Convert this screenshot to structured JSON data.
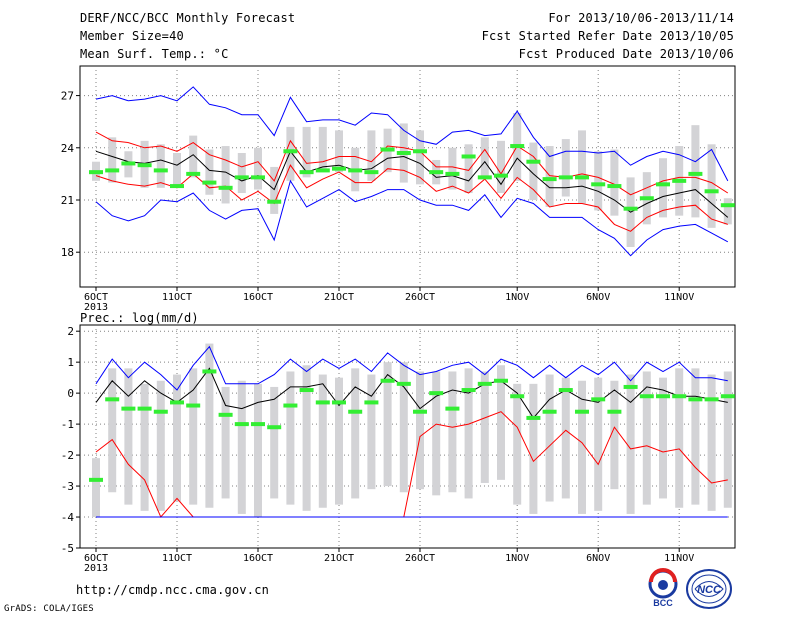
{
  "header": {
    "title": "DERF/NCC/BCC Monthly Forecast",
    "member": "Member Size=40",
    "variable": "Mean Surf. Temp.: °C",
    "period": "For 2013/10/06-2013/11/14",
    "started": "Fcst Started Refer Date 2013/10/05",
    "produced": "Fcst Produced Date 2013/10/06"
  },
  "precip_label": "Prec.: log(mm/d)",
  "footer": {
    "url": "http://cmdp.ncc.cma.gov.cn",
    "credit": "GrADS: COLA/IGES"
  },
  "logos": {
    "bcc": "BCC",
    "ncc": "NCC"
  },
  "colors": {
    "ensemble_mean": "#000000",
    "spread": "#ff0000",
    "extremes": "#0000ff",
    "box": "#d3d3d6",
    "marker": "#33ee33"
  },
  "chart_data": [
    {
      "type": "line",
      "panel": "temperature",
      "x": [
        "2013-10-06",
        "2013-10-07",
        "2013-10-08",
        "2013-10-09",
        "2013-10-10",
        "2013-10-11",
        "2013-10-12",
        "2013-10-13",
        "2013-10-14",
        "2013-10-15",
        "2013-10-16",
        "2013-10-17",
        "2013-10-18",
        "2013-10-19",
        "2013-10-20",
        "2013-10-21",
        "2013-10-22",
        "2013-10-23",
        "2013-10-24",
        "2013-10-25",
        "2013-10-26",
        "2013-10-27",
        "2013-10-28",
        "2013-10-29",
        "2013-10-30",
        "2013-10-31",
        "2013-11-01",
        "2013-11-02",
        "2013-11-03",
        "2013-11-04",
        "2013-11-05",
        "2013-11-06",
        "2013-11-07",
        "2013-11-08",
        "2013-11-09",
        "2013-11-10",
        "2013-11-11",
        "2013-11-12",
        "2013-11-13",
        "2013-11-14"
      ],
      "x_tick_labels": [
        "6OCT\n2013",
        "11OCT",
        "16OCT",
        "21OCT",
        "26OCT",
        "1NOV",
        "6NOV",
        "11NOV"
      ],
      "ylim": [
        16,
        28.7
      ],
      "y_ticks": [
        18,
        21,
        24,
        27
      ],
      "grid": true,
      "series": [
        {
          "role": "max",
          "color": "#0000ff",
          "values": [
            26.8,
            27.0,
            26.7,
            26.8,
            27.0,
            26.7,
            27.5,
            26.5,
            26.3,
            25.9,
            25.9,
            24.7,
            26.9,
            25.5,
            25.6,
            25.6,
            25.3,
            26.0,
            25.9,
            25.0,
            24.4,
            24.2,
            24.9,
            25.0,
            24.7,
            24.8,
            26.1,
            24.6,
            23.5,
            23.8,
            23.8,
            23.7,
            23.8,
            23.0,
            23.5,
            23.8,
            23.6,
            23.2,
            23.9,
            22.1
          ]
        },
        {
          "role": "upper",
          "color": "#ff0000",
          "values": [
            24.9,
            24.4,
            24.3,
            24.0,
            24.1,
            23.8,
            24.3,
            23.6,
            23.3,
            22.9,
            23.2,
            22.1,
            24.4,
            23.1,
            23.2,
            23.5,
            23.5,
            23.2,
            24.1,
            24.0,
            23.8,
            22.9,
            22.9,
            22.7,
            23.9,
            22.5,
            24.1,
            23.5,
            22.4,
            22.3,
            22.5,
            22.3,
            21.9,
            21.3,
            21.7,
            22.1,
            22.3,
            22.3,
            22.0,
            21.4
          ]
        },
        {
          "role": "mean",
          "color": "#000000",
          "values": [
            23.8,
            23.5,
            23.2,
            23.1,
            23.3,
            23.0,
            23.6,
            22.7,
            22.6,
            22.1,
            22.4,
            21.6,
            23.8,
            22.6,
            22.9,
            23.0,
            22.7,
            22.8,
            23.4,
            23.5,
            23.1,
            22.3,
            22.4,
            22.1,
            23.2,
            21.9,
            23.4,
            22.5,
            21.7,
            21.7,
            21.8,
            21.5,
            21.0,
            20.3,
            20.8,
            21.2,
            21.4,
            21.6,
            20.8,
            20.0
          ]
        },
        {
          "role": "lower",
          "color": "#ff0000",
          "values": [
            22.4,
            22.1,
            21.9,
            21.8,
            22.0,
            21.7,
            22.5,
            21.7,
            21.8,
            21.0,
            21.5,
            20.8,
            23.0,
            21.7,
            22.2,
            22.6,
            22.0,
            22.0,
            22.8,
            22.7,
            22.3,
            21.5,
            21.8,
            21.4,
            22.2,
            21.1,
            22.3,
            21.6,
            20.6,
            20.8,
            20.8,
            20.6,
            19.6,
            19.2,
            20.0,
            20.4,
            20.6,
            20.7,
            19.9,
            19.6
          ]
        },
        {
          "role": "min",
          "color": "#0000ff",
          "values": [
            20.9,
            20.1,
            19.8,
            20.1,
            21.0,
            20.9,
            21.4,
            20.4,
            19.9,
            20.4,
            20.5,
            18.7,
            22.1,
            20.6,
            21.1,
            21.6,
            20.9,
            21.2,
            21.6,
            21.6,
            21.0,
            20.7,
            20.7,
            20.4,
            21.3,
            20.0,
            21.1,
            20.8,
            20.0,
            20.0,
            20.0,
            19.3,
            18.8,
            17.8,
            18.7,
            19.3,
            19.5,
            19.6,
            19.1,
            18.6
          ]
        }
      ],
      "boxes": {
        "low": [
          22.1,
          22.0,
          22.3,
          21.7,
          21.7,
          21.7,
          22.3,
          21.3,
          20.8,
          21.4,
          21.6,
          20.2,
          22.1,
          22.3,
          22.6,
          22.6,
          21.5,
          22.1,
          22.6,
          22.0,
          21.9,
          21.9,
          21.6,
          21.4,
          22.3,
          21.4,
          22.1,
          21.0,
          20.6,
          21.2,
          20.8,
          20.4,
          20.1,
          18.3,
          19.6,
          20.0,
          20.1,
          20.0,
          19.4,
          19.6
        ],
        "high": [
          23.2,
          24.6,
          23.8,
          24.4,
          24.2,
          23.7,
          24.7,
          23.9,
          24.1,
          23.7,
          24.0,
          22.9,
          25.2,
          25.2,
          25.2,
          25.0,
          24.0,
          25.0,
          25.1,
          25.4,
          25.0,
          23.3,
          24.0,
          24.2,
          24.6,
          24.4,
          26.0,
          24.3,
          24.1,
          24.5,
          25.0,
          23.8,
          23.9,
          22.3,
          22.6,
          23.4,
          24.1,
          25.3,
          24.2,
          21.1
        ]
      },
      "marker": [
        22.6,
        22.7,
        23.1,
        23.0,
        22.7,
        21.8,
        22.5,
        22.0,
        21.7,
        22.3,
        22.3,
        20.9,
        23.8,
        22.6,
        22.7,
        22.8,
        22.7,
        22.6,
        23.9,
        23.7,
        23.8,
        22.6,
        22.5,
        23.5,
        22.3,
        22.4,
        24.1,
        23.2,
        22.2,
        22.3,
        22.3,
        21.9,
        21.8,
        20.5,
        21.1,
        21.9,
        22.1,
        22.5,
        21.5,
        20.7
      ]
    },
    {
      "type": "line",
      "panel": "precipitation",
      "x": [
        "2013-10-06",
        "2013-10-07",
        "2013-10-08",
        "2013-10-09",
        "2013-10-10",
        "2013-10-11",
        "2013-10-12",
        "2013-10-13",
        "2013-10-14",
        "2013-10-15",
        "2013-10-16",
        "2013-10-17",
        "2013-10-18",
        "2013-10-19",
        "2013-10-20",
        "2013-10-21",
        "2013-10-22",
        "2013-10-23",
        "2013-10-24",
        "2013-10-25",
        "2013-10-26",
        "2013-10-27",
        "2013-10-28",
        "2013-10-29",
        "2013-10-30",
        "2013-10-31",
        "2013-11-01",
        "2013-11-02",
        "2013-11-03",
        "2013-11-04",
        "2013-11-05",
        "2013-11-06",
        "2013-11-07",
        "2013-11-08",
        "2013-11-09",
        "2013-11-10",
        "2013-11-11",
        "2013-11-12",
        "2013-11-13",
        "2013-11-14"
      ],
      "x_tick_labels": [
        "6OCT\n2013",
        "11OCT",
        "16OCT",
        "21OCT",
        "26OCT",
        "1NOV",
        "6NOV",
        "11NOV"
      ],
      "ylim": [
        -5,
        2.2
      ],
      "y_ticks": [
        -5,
        -4,
        -3,
        -2,
        -1,
        0,
        1,
        2
      ],
      "grid": true,
      "series": [
        {
          "role": "max",
          "color": "#0000ff",
          "values": [
            0.3,
            1.1,
            0.5,
            1.0,
            0.6,
            0.1,
            0.9,
            1.5,
            0.3,
            0.3,
            0.3,
            0.6,
            1.1,
            0.7,
            1.1,
            0.8,
            1.1,
            0.7,
            1.3,
            0.9,
            0.6,
            0.7,
            0.9,
            1.0,
            0.6,
            1.1,
            0.9,
            0.5,
            0.9,
            0.5,
            0.9,
            0.6,
            1.0,
            0.4,
            1.0,
            0.7,
            1.0,
            0.5,
            0.5,
            0.4
          ]
        },
        {
          "role": "mean",
          "color": "#000000",
          "values": [
            -0.3,
            0.4,
            -0.1,
            0.4,
            0.0,
            -0.3,
            0.1,
            0.8,
            -0.4,
            -0.5,
            -0.3,
            -0.2,
            0.2,
            0.2,
            0.3,
            -0.4,
            0.2,
            -0.1,
            0.6,
            0.2,
            -0.5,
            -0.1,
            0.1,
            0.0,
            0.3,
            0.4,
            0.0,
            -0.8,
            -0.2,
            0.1,
            -0.2,
            -0.3,
            0.1,
            -0.3,
            0.2,
            0.1,
            -0.1,
            -0.1,
            -0.2,
            -0.3
          ]
        },
        {
          "role": "lower",
          "color": "#ff0000",
          "values": [
            -1.9,
            -1.5,
            -2.3,
            -2.8,
            -4.0,
            -3.4,
            -4.0,
            -4.0,
            -4.0,
            -4.0,
            -4.0,
            -4.0,
            -4.0,
            -4.0,
            -4.0,
            -4.0,
            -4.0,
            -4.0,
            -4.0,
            -4.0,
            -1.4,
            -1.0,
            -1.1,
            -1.0,
            -0.8,
            -0.6,
            -1.1,
            -2.2,
            -1.7,
            -1.2,
            -1.6,
            -2.3,
            -1.1,
            -1.8,
            -1.7,
            -1.9,
            -1.8,
            -2.4,
            -2.9,
            -2.8
          ]
        },
        {
          "role": "min",
          "color": "#0000ff",
          "values": [
            -4.0,
            -4.0,
            -4.0,
            -4.0,
            -4.0,
            -4.0,
            -4.0,
            -4.0,
            -4.0,
            -4.0,
            -4.0,
            -4.0,
            -4.0,
            -4.0,
            -4.0,
            -4.0,
            -4.0,
            -4.0,
            -4.0,
            -4.0,
            -4.0,
            -4.0,
            -4.0,
            -4.0,
            -4.0,
            -4.0,
            -4.0,
            -4.0,
            -4.0,
            -4.0,
            -4.0,
            -4.0,
            -4.0,
            -4.0,
            -4.0,
            -4.0,
            -4.0,
            -4.0,
            -4.0,
            -4.0
          ]
        }
      ],
      "boxes": {
        "low": [
          -4.0,
          -3.2,
          -3.6,
          -3.8,
          -3.8,
          -3.5,
          -3.6,
          -3.7,
          -3.4,
          -3.9,
          -4.0,
          -3.4,
          -3.6,
          -3.8,
          -3.7,
          -3.6,
          -3.4,
          -3.1,
          -3.0,
          -3.2,
          -3.1,
          -3.3,
          -3.2,
          -3.4,
          -2.9,
          -2.8,
          -3.6,
          -3.9,
          -3.5,
          -3.4,
          -3.9,
          -3.8,
          -3.1,
          -3.9,
          -3.6,
          -3.4,
          -3.7,
          -3.6,
          -3.8,
          -3.7
        ],
        "high": [
          -2.1,
          0.8,
          0.8,
          0.3,
          0.4,
          0.6,
          0.8,
          1.6,
          0.2,
          0.4,
          0.3,
          0.2,
          0.7,
          0.9,
          0.6,
          0.5,
          0.8,
          0.6,
          1.0,
          1.0,
          0.7,
          0.7,
          0.7,
          0.8,
          0.7,
          0.9,
          0.3,
          0.3,
          0.6,
          0.5,
          0.4,
          0.5,
          0.4,
          0.6,
          0.7,
          0.5,
          0.8,
          0.8,
          0.6,
          0.7
        ]
      },
      "marker": [
        -2.8,
        -0.2,
        -0.5,
        -0.5,
        -0.6,
        -0.3,
        -0.4,
        0.7,
        -0.7,
        -1.0,
        -1.0,
        -1.1,
        -0.4,
        0.1,
        -0.3,
        -0.3,
        -0.6,
        -0.3,
        0.4,
        0.3,
        -0.6,
        0.0,
        -0.5,
        0.1,
        0.3,
        0.4,
        -0.1,
        -0.8,
        -0.6,
        0.1,
        -0.6,
        -0.2,
        -0.6,
        0.2,
        -0.1,
        -0.1,
        -0.1,
        -0.2,
        -0.2,
        -0.1
      ]
    }
  ]
}
